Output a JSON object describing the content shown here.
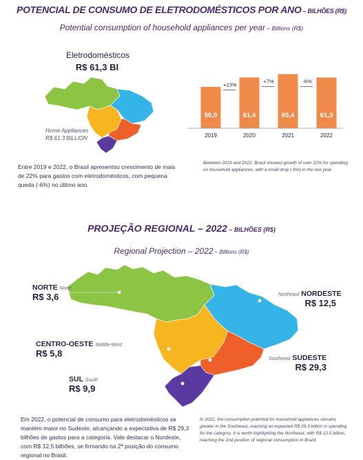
{
  "title1": {
    "main": "POTENCIAL DE CONSUMO DE ELETRODOMÉSTICOS POR ANO",
    "unit": " – BILHÕES (R$)"
  },
  "subtitle1": {
    "main": "Potential consumption of household appliances per year",
    "unit": " – Billions (R$)"
  },
  "map1": {
    "label": "Eletrodomésticos",
    "value": "R$ 61,3 BI",
    "en_line1": "Home Appliances",
    "en_line2": "R$ 61.3 BILLION"
  },
  "colors": {
    "title": "#4a2a6e",
    "bar": "#f08a4b",
    "north": "#8cc444",
    "northeast": "#35b4e8",
    "centerwest": "#f7b51f",
    "southeast": "#ef5f2a",
    "south": "#5a3aa0"
  },
  "chart_data": {
    "type": "bar",
    "categories": [
      "2019",
      "2020",
      "2021",
      "2022"
    ],
    "values": [
      50.0,
      61.4,
      65.4,
      61.3
    ],
    "value_labels": [
      "50,0",
      "61,4",
      "65,4",
      "61,3"
    ],
    "growth_labels": [
      "+23%",
      "+7%",
      "-6%"
    ],
    "title": "",
    "xlabel": "",
    "ylabel": "",
    "ylim": [
      0,
      70
    ],
    "grid": false
  },
  "text_pt1": "Entre 2019 e 2022, o Brasil apresentou crescimento de mais de 22% para gastos com eletrodomésticos, com pequena queda (-6%) no último ano.",
  "text_en1": "Between 2019 and 2022, Brasil showed growth of over 22% for spending on household appliances, with a small drop (-6%) in the last year.",
  "title2": {
    "main": "PROJEÇÃO REGIONAL – 2022",
    "unit": " – BILHÕES (R$)"
  },
  "subtitle2": {
    "main": "Regional Projection  – 2022",
    "unit": " – Billions (R$)"
  },
  "regions": {
    "north": {
      "name": "NORTE",
      "en": "North",
      "value": "R$ 3,6"
    },
    "northeast": {
      "name": "NORDESTE",
      "en": "Northeast",
      "value": "R$ 12,5"
    },
    "centerwest": {
      "name": "CENTRO-OESTE",
      "en": "Middle-West",
      "value": "R$ 5,8"
    },
    "southeast": {
      "name": "SUDESTE",
      "en": "Southeast",
      "value": "R$ 29,3"
    },
    "south": {
      "name": "SUL",
      "en": "South",
      "value": "R$ 9,9"
    }
  },
  "text_pt2": "Em 2022, o potencial de consumo para eletrodomésticos se mantém maior no Sudeste, alcançando a expectativa de R$ 29,3 bilhões de gastos para a categoria. Vale destacar o Nordeste, com R$ 12,5 bilhões, se firmando na 2ª posição do consumo regional no Brasil.",
  "text_en2": "In 2022, the consumption potential for household appliances remains greater in the Southeast, reaching an expected R$ 29.3 billion in spending for the category. It is worth highlighting the Northeast, with R$ 12.5 billion, reaching the 2nd position of regional consumption in Brazil."
}
